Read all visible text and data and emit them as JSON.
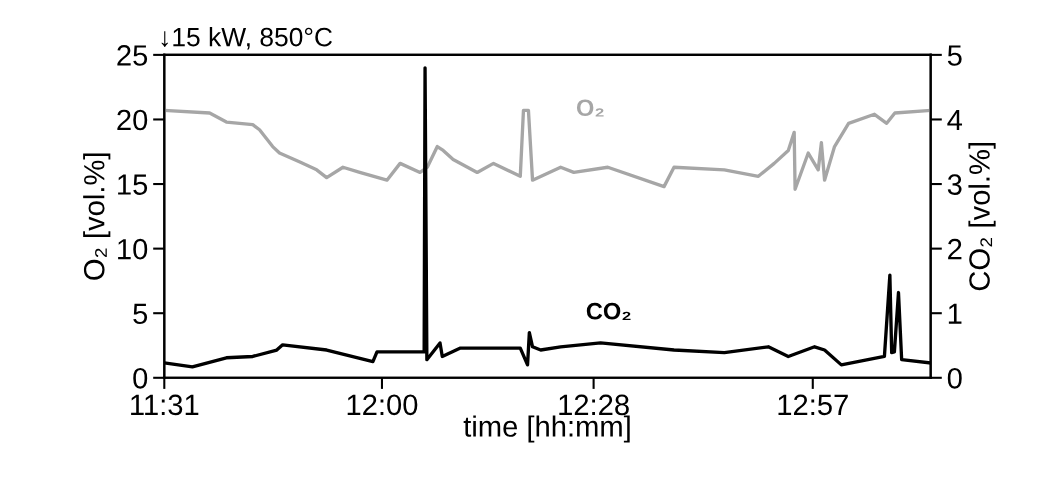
{
  "chart_data": {
    "type": "line",
    "xlabel": "time [hh:mm]",
    "ylabel": "O₂ [vol.%]",
    "y2label": "CO₂ [vol.%]",
    "annotations": [
      "↓15 kW, 850°C"
    ],
    "xlim": [
      11.52,
      13.21
    ],
    "xticks": [
      {
        "value": 11.52,
        "label": "11:31"
      },
      {
        "value": 12.0,
        "label": "12:00"
      },
      {
        "value": 12.4667,
        "label": "12:28"
      },
      {
        "value": 12.95,
        "label": "12:57"
      }
    ],
    "ylim": [
      0,
      25
    ],
    "yticks": [
      0,
      5,
      10,
      15,
      20,
      25
    ],
    "y2lim": [
      0,
      5
    ],
    "y2ticks": [
      0,
      1,
      2,
      3,
      4,
      5
    ],
    "grid": false,
    "legend": false,
    "marker": "none",
    "line_style": "solid",
    "series": [
      {
        "name": "O₂",
        "color": "#a6a6a6",
        "x": [
          11.52,
          11.62,
          11.657,
          11.715,
          11.73,
          11.759,
          11.774,
          11.819,
          11.856,
          11.878,
          11.914,
          11.951,
          12.011,
          12.04,
          12.084,
          12.1,
          12.122,
          12.135,
          12.157,
          12.21,
          12.246,
          12.305,
          12.312,
          12.323,
          12.332,
          12.394,
          12.423,
          12.498,
          12.622,
          12.644,
          12.755,
          12.83,
          12.865,
          12.896,
          12.909,
          12.911,
          12.94,
          12.962,
          12.969,
          12.976,
          12.998,
          13.029,
          13.086,
          13.113,
          13.131,
          13.21
        ],
        "values": [
          20.7,
          20.5,
          19.8,
          19.6,
          19.2,
          17.9,
          17.4,
          16.7,
          16.1,
          15.5,
          16.3,
          15.9,
          15.3,
          16.6,
          15.9,
          16.3,
          17.9,
          17.6,
          16.9,
          15.9,
          16.6,
          15.6,
          20.7,
          20.7,
          15.3,
          16.3,
          15.9,
          16.3,
          14.8,
          16.3,
          16.1,
          15.6,
          16.6,
          17.6,
          19.0,
          14.6,
          17.4,
          16.1,
          18.2,
          15.3,
          17.9,
          19.7,
          20.4,
          19.7,
          20.5,
          20.7
        ]
      },
      {
        "name": "CO₂",
        "color": "#000000",
        "axis": "y2",
        "x": [
          11.52,
          11.582,
          11.657,
          11.715,
          11.768,
          11.781,
          11.878,
          11.98,
          11.989,
          12.084,
          12.093,
          12.095,
          12.099,
          12.128,
          12.133,
          12.173,
          12.305,
          12.321,
          12.325,
          12.332,
          12.35,
          12.394,
          12.482,
          12.644,
          12.755,
          12.852,
          12.896,
          12.954,
          12.976,
          13.013,
          13.108,
          13.12,
          13.124,
          13.13,
          13.139,
          13.146,
          13.21
        ],
        "values": [
          0.23,
          0.17,
          0.31,
          0.33,
          0.43,
          0.51,
          0.43,
          0.25,
          0.4,
          0.4,
          0.4,
          4.8,
          0.28,
          0.54,
          0.33,
          0.46,
          0.46,
          0.2,
          0.7,
          0.48,
          0.43,
          0.48,
          0.54,
          0.43,
          0.39,
          0.48,
          0.33,
          0.48,
          0.43,
          0.2,
          0.33,
          1.59,
          0.39,
          0.4,
          1.32,
          0.28,
          0.23
        ]
      }
    ]
  }
}
